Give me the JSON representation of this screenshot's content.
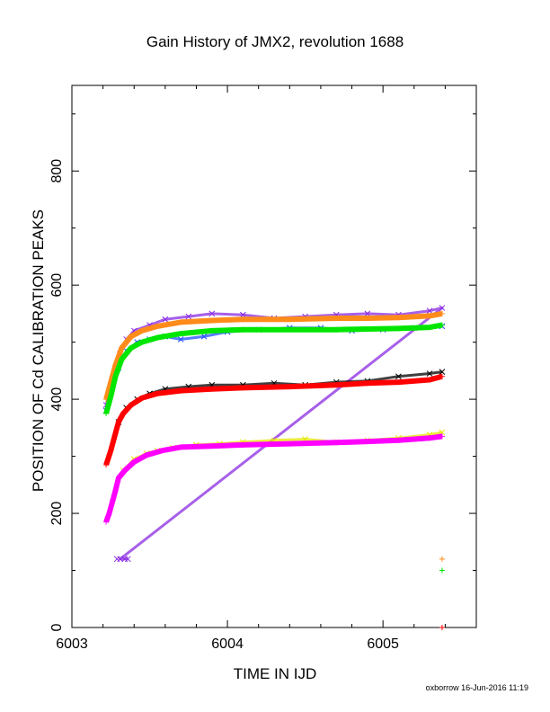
{
  "chart_data": {
    "type": "scatter",
    "title": "Gain History of JMX2, revolution 1688",
    "xlabel": "TIME IN IJD",
    "ylabel": "POSITION OF Cd CALIBRATION PEAKS",
    "xlim": [
      6003.0,
      6005.6
    ],
    "ylim": [
      0,
      950
    ],
    "xticks": [
      "6003",
      "6004",
      "6005"
    ],
    "yticks": [
      "0",
      "200",
      "400",
      "600",
      "800"
    ],
    "grid": false,
    "legend": "none",
    "series": [
      {
        "marker": "x",
        "color": "#8a2be2",
        "role": "scatter",
        "points": [
          [
            6003.22,
            390
          ],
          [
            6003.25,
            420
          ],
          [
            6003.28,
            455
          ],
          [
            6003.31,
            480
          ],
          [
            6003.35,
            505
          ],
          [
            6003.4,
            520
          ],
          [
            6003.5,
            530
          ],
          [
            6003.6,
            540
          ],
          [
            6003.75,
            545
          ],
          [
            6003.9,
            550
          ],
          [
            6004.1,
            548
          ],
          [
            6004.3,
            542
          ],
          [
            6004.5,
            545
          ],
          [
            6004.7,
            548
          ],
          [
            6004.9,
            550
          ],
          [
            6005.1,
            548
          ],
          [
            6005.3,
            555
          ],
          [
            6005.38,
            560
          ],
          [
            6003.29,
            120
          ],
          [
            6003.31,
            120
          ],
          [
            6003.34,
            120
          ],
          [
            6003.36,
            120
          ]
        ]
      },
      {
        "marker": "x",
        "color": "#1e50ff",
        "role": "scatter",
        "points": [
          [
            6003.22,
            380
          ],
          [
            6003.26,
            420
          ],
          [
            6003.3,
            455
          ],
          [
            6003.35,
            485
          ],
          [
            6003.42,
            500
          ],
          [
            6003.5,
            505
          ],
          [
            6003.6,
            510
          ],
          [
            6003.7,
            505
          ],
          [
            6003.85,
            510
          ],
          [
            6004.0,
            518
          ],
          [
            6004.2,
            522
          ],
          [
            6004.4,
            525
          ],
          [
            6004.6,
            525
          ],
          [
            6004.8,
            520
          ],
          [
            6005.0,
            522
          ],
          [
            6005.2,
            525
          ],
          [
            6005.38,
            528
          ]
        ]
      },
      {
        "marker": "x",
        "color": "#000000",
        "role": "scatter",
        "points": [
          [
            6003.3,
            360
          ],
          [
            6003.35,
            385
          ],
          [
            6003.42,
            400
          ],
          [
            6003.5,
            410
          ],
          [
            6003.6,
            418
          ],
          [
            6003.75,
            422
          ],
          [
            6003.9,
            425
          ],
          [
            6004.1,
            425
          ],
          [
            6004.3,
            428
          ],
          [
            6004.5,
            425
          ],
          [
            6004.7,
            430
          ],
          [
            6004.9,
            432
          ],
          [
            6005.1,
            440
          ],
          [
            6005.3,
            445
          ],
          [
            6005.38,
            448
          ]
        ]
      },
      {
        "marker": "x",
        "color": "#e6e600",
        "role": "scatter",
        "points": [
          [
            6003.33,
            275
          ],
          [
            6003.4,
            295
          ],
          [
            6003.48,
            305
          ],
          [
            6003.55,
            310
          ],
          [
            6003.65,
            315
          ],
          [
            6003.8,
            320
          ],
          [
            6003.95,
            322
          ],
          [
            6004.1,
            325
          ],
          [
            6004.3,
            328
          ],
          [
            6004.5,
            330
          ],
          [
            6004.7,
            325
          ],
          [
            6004.9,
            328
          ],
          [
            6005.1,
            332
          ],
          [
            6005.3,
            338
          ],
          [
            6005.38,
            342
          ]
        ]
      },
      {
        "marker": "+",
        "color": "#ff8c1a",
        "role": "fit",
        "points": [
          [
            6003.22,
            400
          ],
          [
            6003.25,
            430
          ],
          [
            6003.28,
            460
          ],
          [
            6003.32,
            490
          ],
          [
            6003.38,
            510
          ],
          [
            6003.45,
            520
          ],
          [
            6003.55,
            528
          ],
          [
            6003.7,
            535
          ],
          [
            6003.9,
            538
          ],
          [
            6004.1,
            540
          ],
          [
            6004.4,
            540
          ],
          [
            6004.7,
            542
          ],
          [
            6004.9,
            542
          ],
          [
            6005.1,
            543
          ],
          [
            6005.3,
            546
          ],
          [
            6005.38,
            550
          ],
          [
            6005.38,
            120
          ]
        ]
      },
      {
        "marker": "+",
        "color": "#00e600",
        "role": "fit",
        "points": [
          [
            6003.22,
            375
          ],
          [
            6003.25,
            405
          ],
          [
            6003.28,
            440
          ],
          [
            6003.32,
            470
          ],
          [
            6003.38,
            490
          ],
          [
            6003.45,
            500
          ],
          [
            6003.55,
            508
          ],
          [
            6003.7,
            515
          ],
          [
            6003.9,
            520
          ],
          [
            6004.1,
            522
          ],
          [
            6004.4,
            522
          ],
          [
            6004.7,
            522
          ],
          [
            6004.9,
            523
          ],
          [
            6005.1,
            524
          ],
          [
            6005.3,
            526
          ],
          [
            6005.38,
            530
          ],
          [
            6005.38,
            100
          ]
        ]
      },
      {
        "marker": "+",
        "color": "#ff0000",
        "role": "fit",
        "points": [
          [
            6003.22,
            285
          ],
          [
            6003.25,
            310
          ],
          [
            6003.27,
            330
          ],
          [
            6003.3,
            360
          ],
          [
            6003.33,
            375
          ],
          [
            6003.38,
            390
          ],
          [
            6003.45,
            402
          ],
          [
            6003.55,
            410
          ],
          [
            6003.7,
            415
          ],
          [
            6003.9,
            418
          ],
          [
            6004.1,
            420
          ],
          [
            6004.4,
            422
          ],
          [
            6004.7,
            425
          ],
          [
            6004.9,
            428
          ],
          [
            6005.1,
            430
          ],
          [
            6005.3,
            434
          ],
          [
            6005.38,
            440
          ],
          [
            6005.38,
            0
          ]
        ]
      },
      {
        "marker": "+",
        "color": "#ff00ff",
        "role": "fit",
        "points": [
          [
            6003.22,
            185
          ],
          [
            6003.24,
            200
          ],
          [
            6003.26,
            220
          ],
          [
            6003.28,
            240
          ],
          [
            6003.3,
            262
          ],
          [
            6003.34,
            275
          ],
          [
            6003.4,
            290
          ],
          [
            6003.48,
            302
          ],
          [
            6003.58,
            310
          ],
          [
            6003.7,
            316
          ],
          [
            6003.9,
            318
          ],
          [
            6004.1,
            320
          ],
          [
            6004.4,
            322
          ],
          [
            6004.7,
            324
          ],
          [
            6004.9,
            326
          ],
          [
            6005.1,
            328
          ],
          [
            6005.3,
            332
          ],
          [
            6005.38,
            335
          ]
        ]
      }
    ]
  },
  "footer": {
    "text": "oxborrow 16-Jun-2016 11:19"
  }
}
